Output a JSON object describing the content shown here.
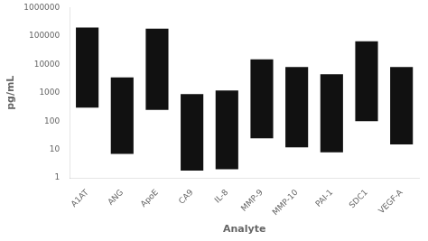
{
  "chart_data": {
    "type": "bar",
    "categories": [
      "A1AT",
      "ANG",
      "ApoE",
      "CA9",
      "IL-8",
      "MMP-9",
      "MMP-10",
      "PAI-1",
      "SDC1",
      "VEGF-A"
    ],
    "values": [
      [
        300,
        200000
      ],
      [
        7,
        3500
      ],
      [
        250,
        180000
      ],
      [
        1.8,
        900
      ],
      [
        2.0,
        1200
      ],
      [
        25,
        15000
      ],
      [
        12,
        8000
      ],
      [
        8,
        4500
      ],
      [
        100,
        65000
      ],
      [
        15,
        8000
      ]
    ],
    "color": "#111111",
    "xlabel": "Analyte",
    "ylabel": "pg/mL",
    "log": "y",
    "ylim": [
      1,
      1000000
    ],
    "yticks": [
      1,
      10,
      100,
      1000,
      10000,
      100000,
      1000000
    ],
    "grid": false
  }
}
